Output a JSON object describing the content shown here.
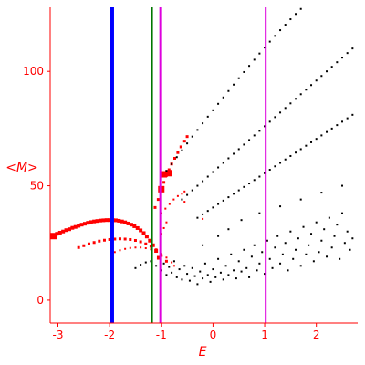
{
  "chart_data": {
    "type": "scatter",
    "title": "",
    "xlabel": "E",
    "ylabel": "<M>",
    "xlim": [
      -3.15,
      2.8
    ],
    "ylim": [
      -10,
      128
    ],
    "xticks": [
      -3,
      -2,
      -1,
      0,
      1,
      2
    ],
    "yticks": [
      0,
      50,
      100
    ],
    "grid": false,
    "legend": "none",
    "colors": {
      "axis": "#ff0000",
      "black_points": "#000000",
      "red_points": "#ff0000",
      "line_blue": "#0000ff",
      "line_green": "#007700",
      "line_magenta": "#dd00dd"
    },
    "vertical_lines": [
      {
        "x": -1.95,
        "color": "#0000ff",
        "width": 4
      },
      {
        "x": -1.18,
        "color": "#007700",
        "width": 2
      },
      {
        "x": -1.02,
        "color": "#dd00dd",
        "width": 2
      },
      {
        "x": 1.02,
        "color": "#dd00dd",
        "width": 2
      }
    ],
    "red_series": [
      {
        "size": 4,
        "points": [
          [
            -3.08,
            28
          ],
          [
            -3.02,
            29
          ],
          [
            -2.96,
            29.5
          ],
          [
            -2.9,
            30
          ],
          [
            -2.84,
            30.6
          ],
          [
            -2.78,
            31
          ],
          [
            -2.72,
            31.6
          ],
          [
            -2.66,
            32
          ],
          [
            -2.6,
            32.5
          ],
          [
            -2.54,
            33
          ],
          [
            -2.48,
            33.4
          ],
          [
            -2.42,
            33.8
          ],
          [
            -2.36,
            34.1
          ],
          [
            -2.3,
            34.4
          ],
          [
            -2.24,
            34.6
          ],
          [
            -2.18,
            34.8
          ],
          [
            -2.12,
            34.9
          ],
          [
            -2.06,
            35
          ],
          [
            -2.0,
            35
          ],
          [
            -1.94,
            35
          ],
          [
            -1.88,
            34.9
          ],
          [
            -1.82,
            34.7
          ],
          [
            -1.76,
            34.4
          ],
          [
            -1.7,
            34
          ],
          [
            -1.64,
            33.5
          ],
          [
            -1.58,
            33
          ],
          [
            -1.52,
            32.3
          ],
          [
            -1.46,
            31.5
          ],
          [
            -1.4,
            30.5
          ],
          [
            -1.34,
            29.3
          ],
          [
            -1.28,
            27.8
          ],
          [
            -1.22,
            26
          ],
          [
            -1.16,
            24
          ],
          [
            -1.1,
            21.5
          ],
          [
            -1.05,
            18.5
          ]
        ]
      },
      {
        "size": 3,
        "points": [
          [
            -2.6,
            23
          ],
          [
            -2.5,
            23.8
          ],
          [
            -2.4,
            24.6
          ],
          [
            -2.3,
            25.2
          ],
          [
            -2.2,
            25.8
          ],
          [
            -2.1,
            26.2
          ],
          [
            -2.0,
            26.5
          ],
          [
            -1.9,
            26.7
          ],
          [
            -1.8,
            26.8
          ],
          [
            -1.7,
            26.7
          ],
          [
            -1.6,
            26.5
          ],
          [
            -1.5,
            26.1
          ],
          [
            -1.4,
            25.5
          ],
          [
            -1.3,
            24.6
          ],
          [
            -1.2,
            23.5
          ],
          [
            -1.1,
            22
          ],
          [
            -1.0,
            19.5
          ],
          [
            -0.9,
            17
          ]
        ]
      },
      {
        "size": 2,
        "points": [
          [
            -1.9,
            21
          ],
          [
            -1.8,
            21.8
          ],
          [
            -1.7,
            22.4
          ],
          [
            -1.6,
            22.8
          ],
          [
            -1.5,
            23
          ],
          [
            -1.4,
            23
          ],
          [
            -1.3,
            22.7
          ],
          [
            -1.2,
            22.2
          ],
          [
            -1.1,
            21.4
          ],
          [
            -1.0,
            20.2
          ],
          [
            -0.9,
            18.6
          ],
          [
            -0.8,
            16.5
          ],
          [
            -0.75,
            15
          ]
        ]
      },
      {
        "size": 3,
        "points": [
          [
            -1.12,
            40.5
          ],
          [
            -1.06,
            44
          ],
          [
            -1.0,
            48
          ],
          [
            -0.95,
            51.5
          ],
          [
            -0.9,
            54.5
          ],
          [
            -0.85,
            57
          ],
          [
            -0.8,
            59.5
          ],
          [
            -0.74,
            62
          ],
          [
            -0.68,
            64.5
          ],
          [
            -0.62,
            67
          ],
          [
            -0.55,
            69.5
          ],
          [
            -0.5,
            71.5
          ]
        ]
      },
      {
        "size": 7,
        "points": [
          [
            -3.08,
            28
          ],
          [
            -0.86,
            55.5
          ],
          [
            -0.95,
            55
          ],
          [
            -1.0,
            48.5
          ]
        ]
      },
      {
        "size": 2,
        "points": [
          [
            -1.0,
            38
          ],
          [
            -0.92,
            40
          ],
          [
            -0.84,
            42
          ],
          [
            -0.76,
            44
          ],
          [
            -0.68,
            45.5
          ],
          [
            -0.6,
            46.5
          ],
          [
            -0.55,
            47.5
          ]
        ]
      },
      {
        "size": 2,
        "points": [
          [
            -1.0,
            29
          ],
          [
            -0.95,
            31.5
          ],
          [
            -0.9,
            34
          ],
          [
            -0.55,
            43
          ],
          [
            -0.2,
            35.5
          ]
        ]
      }
    ],
    "black_series": [
      {
        "name": "branch-top",
        "points": [
          [
            -0.9,
            56.5
          ],
          [
            -0.8,
            59.5
          ],
          [
            -0.7,
            62.5
          ],
          [
            -0.6,
            65.5
          ],
          [
            -0.5,
            68.5
          ],
          [
            -0.4,
            71.5
          ],
          [
            -0.3,
            74.4
          ],
          [
            -0.2,
            77.3
          ],
          [
            -0.1,
            80.2
          ],
          [
            0.0,
            83
          ],
          [
            0.1,
            85.8
          ],
          [
            0.2,
            88.6
          ],
          [
            0.3,
            91.4
          ],
          [
            0.4,
            94.2
          ],
          [
            0.5,
            97
          ],
          [
            0.6,
            99.7
          ],
          [
            0.7,
            102.4
          ],
          [
            0.8,
            105.1
          ],
          [
            0.9,
            107.8
          ],
          [
            1.0,
            110.4
          ],
          [
            1.1,
            113
          ],
          [
            1.2,
            115.5
          ],
          [
            1.3,
            118
          ],
          [
            1.4,
            120.4
          ],
          [
            1.5,
            122.8
          ],
          [
            1.6,
            125.1
          ],
          [
            1.7,
            127.3
          ],
          [
            1.8,
            129.5
          ],
          [
            1.9,
            131.6
          ],
          [
            2.0,
            133.7
          ],
          [
            2.1,
            135.7
          ],
          [
            2.2,
            137.6
          ],
          [
            2.3,
            139.5
          ],
          [
            2.4,
            141.3
          ],
          [
            2.5,
            143.1
          ],
          [
            2.6,
            144.8
          ],
          [
            2.7,
            146.4
          ]
        ]
      },
      {
        "name": "branch-2",
        "points": [
          [
            -0.6,
            44
          ],
          [
            -0.5,
            46
          ],
          [
            -0.4,
            48
          ],
          [
            -0.3,
            50
          ],
          [
            -0.2,
            52
          ],
          [
            -0.1,
            54
          ],
          [
            0.0,
            56
          ],
          [
            0.1,
            58
          ],
          [
            0.2,
            60
          ],
          [
            0.3,
            62
          ],
          [
            0.4,
            64
          ],
          [
            0.5,
            66
          ],
          [
            0.6,
            68
          ],
          [
            0.7,
            70
          ],
          [
            0.8,
            72
          ],
          [
            0.9,
            74
          ],
          [
            1.0,
            76
          ],
          [
            1.1,
            78
          ],
          [
            1.2,
            80
          ],
          [
            1.3,
            82
          ],
          [
            1.4,
            84
          ],
          [
            1.5,
            86
          ],
          [
            1.6,
            88
          ],
          [
            1.7,
            90
          ],
          [
            1.8,
            92
          ],
          [
            1.9,
            94
          ],
          [
            2.0,
            96
          ],
          [
            2.1,
            98
          ],
          [
            2.2,
            100
          ],
          [
            2.3,
            102
          ],
          [
            2.4,
            104
          ],
          [
            2.5,
            106
          ],
          [
            2.6,
            108
          ],
          [
            2.7,
            110
          ]
        ]
      },
      {
        "name": "branch-3",
        "points": [
          [
            -0.3,
            36
          ],
          [
            -0.2,
            37.5
          ],
          [
            -0.1,
            39
          ],
          [
            0.0,
            40.5
          ],
          [
            0.1,
            42
          ],
          [
            0.2,
            43.5
          ],
          [
            0.3,
            45
          ],
          [
            0.4,
            46.5
          ],
          [
            0.5,
            48
          ],
          [
            0.6,
            49.5
          ],
          [
            0.7,
            51
          ],
          [
            0.8,
            52.5
          ],
          [
            0.9,
            54
          ],
          [
            1.0,
            55.5
          ],
          [
            1.1,
            57
          ],
          [
            1.2,
            58.5
          ],
          [
            1.3,
            60
          ],
          [
            1.4,
            61.5
          ],
          [
            1.5,
            63
          ],
          [
            1.6,
            64.5
          ],
          [
            1.7,
            66
          ],
          [
            1.8,
            67.5
          ],
          [
            1.9,
            69
          ],
          [
            2.0,
            70.5
          ],
          [
            2.1,
            72
          ],
          [
            2.2,
            73.5
          ],
          [
            2.3,
            75
          ],
          [
            2.4,
            76.5
          ],
          [
            2.5,
            78
          ],
          [
            2.6,
            79.5
          ],
          [
            2.7,
            81
          ]
        ]
      },
      {
        "name": "cloud",
        "points": [
          [
            -1.5,
            14
          ],
          [
            -1.4,
            15.5
          ],
          [
            -1.3,
            16.5
          ],
          [
            -1.2,
            17
          ],
          [
            -1.1,
            15
          ],
          [
            -1.0,
            13
          ],
          [
            -0.95,
            16
          ],
          [
            -0.9,
            11
          ],
          [
            -0.85,
            14.5
          ],
          [
            -0.8,
            12
          ],
          [
            -0.75,
            17
          ],
          [
            -0.7,
            10
          ],
          [
            -0.65,
            13.5
          ],
          [
            -0.6,
            9
          ],
          [
            -0.55,
            15
          ],
          [
            -0.5,
            11.5
          ],
          [
            -0.45,
            8.5
          ],
          [
            -0.4,
            14
          ],
          [
            -0.35,
            10.5
          ],
          [
            -0.3,
            7
          ],
          [
            -0.25,
            12.5
          ],
          [
            -0.2,
            9.5
          ],
          [
            -0.15,
            16
          ],
          [
            -0.1,
            11
          ],
          [
            -0.05,
            8
          ],
          [
            0.0,
            13.5
          ],
          [
            0.05,
            10
          ],
          [
            0.1,
            18
          ],
          [
            0.15,
            12
          ],
          [
            0.2,
            9
          ],
          [
            0.25,
            15
          ],
          [
            0.3,
            11
          ],
          [
            0.35,
            20
          ],
          [
            0.4,
            13
          ],
          [
            0.45,
            9.5
          ],
          [
            0.5,
            17
          ],
          [
            0.55,
            12.5
          ],
          [
            0.6,
            22
          ],
          [
            0.65,
            14
          ],
          [
            0.7,
            10
          ],
          [
            0.75,
            19
          ],
          [
            0.8,
            24
          ],
          [
            0.85,
            13
          ],
          [
            0.9,
            16
          ],
          [
            0.95,
            21
          ],
          [
            1.0,
            11.5
          ],
          [
            1.05,
            26
          ],
          [
            1.1,
            18
          ],
          [
            1.15,
            14
          ],
          [
            1.2,
            23
          ],
          [
            1.25,
            28
          ],
          [
            1.3,
            16
          ],
          [
            1.35,
            20
          ],
          [
            1.4,
            25
          ],
          [
            1.45,
            13
          ],
          [
            1.5,
            30
          ],
          [
            1.55,
            18
          ],
          [
            1.6,
            22
          ],
          [
            1.65,
            27
          ],
          [
            1.7,
            15
          ],
          [
            1.75,
            32
          ],
          [
            1.8,
            20
          ],
          [
            1.85,
            24
          ],
          [
            1.9,
            29
          ],
          [
            1.95,
            17
          ],
          [
            2.0,
            34
          ],
          [
            2.05,
            21
          ],
          [
            2.1,
            26
          ],
          [
            2.15,
            31
          ],
          [
            2.2,
            19
          ],
          [
            2.25,
            36
          ],
          [
            2.3,
            23
          ],
          [
            2.35,
            28
          ],
          [
            2.4,
            33
          ],
          [
            2.45,
            18
          ],
          [
            2.5,
            38
          ],
          [
            2.55,
            25
          ],
          [
            2.6,
            30
          ],
          [
            2.65,
            22
          ],
          [
            2.7,
            27
          ],
          [
            -0.2,
            24
          ],
          [
            0.1,
            28
          ],
          [
            0.3,
            31
          ],
          [
            0.55,
            35
          ],
          [
            0.9,
            38
          ],
          [
            1.3,
            41
          ],
          [
            1.7,
            44
          ],
          [
            2.1,
            47
          ],
          [
            2.5,
            50
          ]
        ]
      }
    ]
  }
}
